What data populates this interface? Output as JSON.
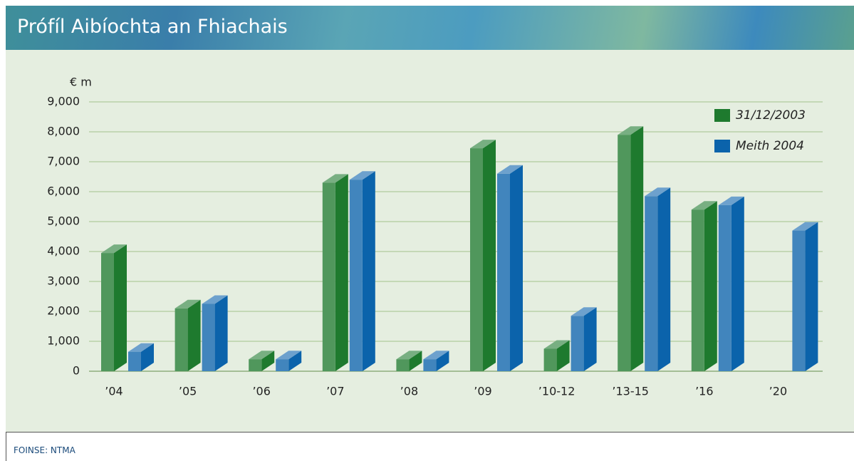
{
  "title": "Prófíl Aibíochta an Fhiachais",
  "chart_data": {
    "type": "bar3d",
    "ylabel": "€ m",
    "categories": [
      "’04",
      "’05",
      "’06",
      "’07",
      "’08",
      "’09",
      "’10-12",
      "’13-15",
      "’16",
      "’20"
    ],
    "series": [
      {
        "name": "31/12/2003",
        "color": "#1e7a2e",
        "values": [
          3950,
          2100,
          400,
          6300,
          400,
          7450,
          750,
          7900,
          5400,
          null
        ]
      },
      {
        "name": "Meith 2004",
        "color": "#0b63ab",
        "values": [
          650,
          2250,
          400,
          6400,
          400,
          6600,
          1850,
          5850,
          5550,
          4700
        ]
      }
    ],
    "ylim": [
      0,
      9000
    ],
    "yticks": [
      0,
      {
        "value": 1000,
        "label": "1,000"
      },
      {
        "value": 2000,
        "label": "2,000"
      },
      {
        "value": 3000,
        "label": "3,000"
      },
      {
        "value": 4000,
        "label": "4,000"
      },
      {
        "value": 5000,
        "label": "5,000"
      },
      {
        "value": 6000,
        "label": "6,000"
      },
      {
        "value": 7000,
        "label": "7,000"
      },
      {
        "value": 8000,
        "label": "8,000"
      },
      {
        "value": 9000,
        "label": "9,000"
      }
    ],
    "grid": true,
    "legend": "top-right"
  },
  "source": "FOINSE: NTMA"
}
